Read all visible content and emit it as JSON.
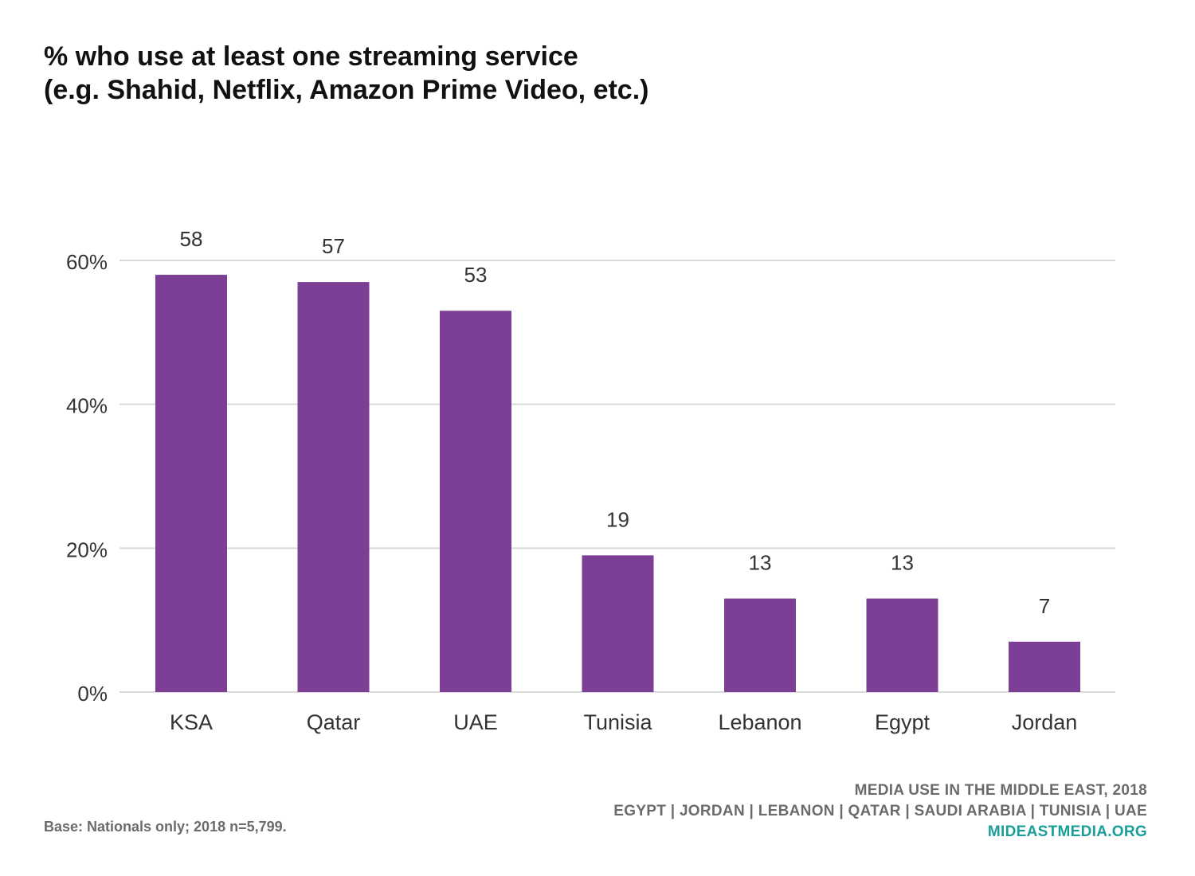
{
  "title": {
    "line1": "% who use at least one streaming service",
    "line2": "(e.g. Shahid, Netflix, Amazon Prime Video, etc.)"
  },
  "chart_data": {
    "type": "bar",
    "categories": [
      "KSA",
      "Qatar",
      "UAE",
      "Tunisia",
      "Lebanon",
      "Egypt",
      "Jordan"
    ],
    "values": [
      58,
      57,
      53,
      19,
      13,
      13,
      7
    ],
    "data_labels": [
      "58",
      "57",
      "53",
      "19",
      "13",
      "13",
      "7"
    ],
    "y_ticks": [
      0,
      20,
      40,
      60
    ],
    "y_tick_labels": [
      "0%",
      "20%",
      "40%",
      "60%"
    ],
    "ylim": [
      0,
      60
    ],
    "grid": true,
    "bar_color": "#7d3f96"
  },
  "footer": {
    "base_note": "Base: Nationals only; 2018 n=5,799.",
    "source_line1": "MEDIA USE IN THE MIDDLE EAST, 2018",
    "source_line2": "EGYPT | JORDAN | LEBANON | QATAR | SAUDI ARABIA | TUNISIA | UAE",
    "source_url": "MIDEASTMEDIA.ORG"
  }
}
